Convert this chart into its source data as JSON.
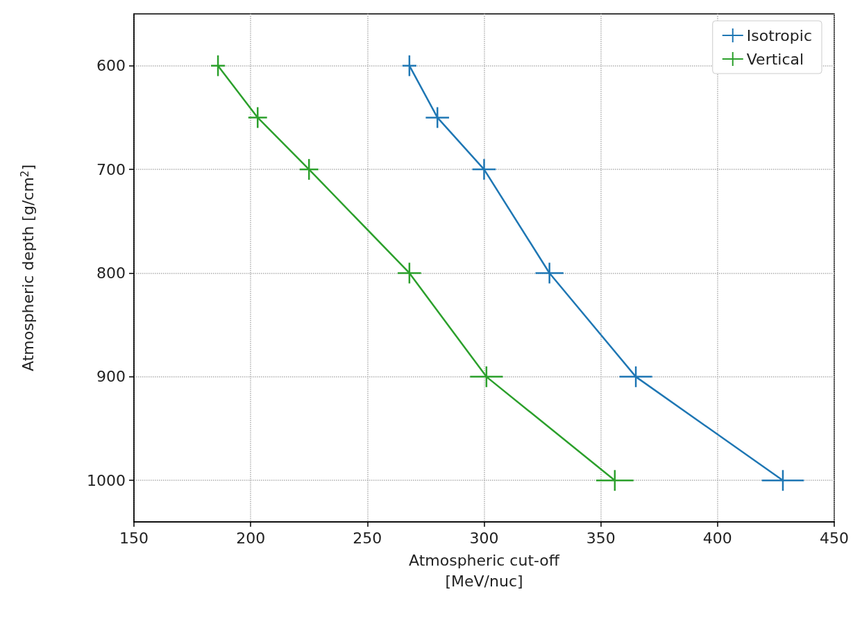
{
  "chart_data": {
    "type": "line",
    "xlabel": "Atmospheric cut-off\n[MeV/nuc]",
    "ylabel": "Atmospheric depth [g/cm$^{2}$]",
    "xlim": [
      150,
      450
    ],
    "xticks": [
      150,
      200,
      250,
      300,
      350,
      400,
      450
    ],
    "ylim": [
      1040,
      550
    ],
    "yticks": [
      600,
      700,
      800,
      900,
      1000
    ],
    "grid": true,
    "legend": "top right",
    "line_style": "solid",
    "series": [
      {
        "name": "Isotropic",
        "color": "#1f77b4",
        "x": [
          268,
          280,
          300,
          328,
          365,
          428
        ],
        "values": [
          600,
          650,
          700,
          800,
          900,
          1000
        ],
        "xerrors": [
          3,
          5,
          5,
          6,
          7,
          9
        ],
        "errors": [
          10,
          10,
          10,
          10,
          10,
          10
        ]
      },
      {
        "name": "Vertical",
        "color": "#2ca02c",
        "x": [
          186,
          203,
          225,
          268,
          301,
          356
        ],
        "values": [
          600,
          650,
          700,
          800,
          900,
          1000
        ],
        "xerrors": [
          3,
          4,
          4,
          5,
          7,
          8
        ],
        "errors": [
          10,
          10,
          10,
          10,
          10,
          10
        ]
      }
    ]
  }
}
